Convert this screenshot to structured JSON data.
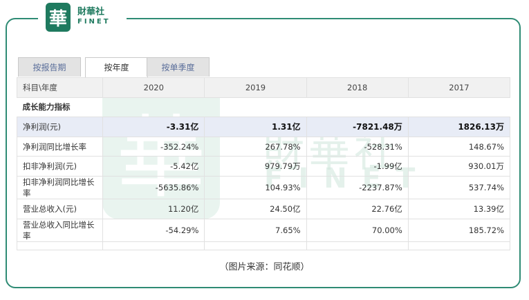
{
  "logo": {
    "mark": "華",
    "cn": "財華社",
    "en": "FINET"
  },
  "watermark": {
    "mark": "華",
    "cn": "財華社",
    "en": "FINET"
  },
  "tabs": [
    {
      "label": "按报告期",
      "active": false
    },
    {
      "label": "按年度",
      "active": true
    },
    {
      "label": "按单季度",
      "active": false
    }
  ],
  "table": {
    "header": [
      "科目\\年度",
      "2020",
      "2019",
      "2018",
      "2017"
    ],
    "section_title": "成长能力指标",
    "rows": [
      {
        "label": "净利润(元)",
        "values": [
          "-3.31亿",
          "1.31亿",
          "-7821.48万",
          "1826.13万"
        ]
      },
      {
        "label": "净利润同比增长率",
        "values": [
          "-352.24%",
          "267.78%",
          "-528.31%",
          "148.67%"
        ]
      },
      {
        "label": "扣非净利润(元)",
        "values": [
          "-5.42亿",
          "979.79万",
          "-1.99亿",
          "930.01万"
        ]
      },
      {
        "label": "扣非净利润同比增长率",
        "values": [
          "-5635.86%",
          "104.93%",
          "-2237.87%",
          "537.74%"
        ]
      },
      {
        "label": "营业总收入(元)",
        "values": [
          "11.20亿",
          "24.50亿",
          "22.76亿",
          "13.39亿"
        ]
      },
      {
        "label": "营业总收入同比增长率",
        "values": [
          "-54.29%",
          "7.65%",
          "70.00%",
          "185.72%"
        ]
      }
    ]
  },
  "caption": "（图片来源：同花顺）",
  "colors": {
    "brand": "#1f7a5f",
    "frame": "#2e8b74",
    "highlight_row": "#e8ecf6",
    "tab_text": "#5a6e9a"
  }
}
